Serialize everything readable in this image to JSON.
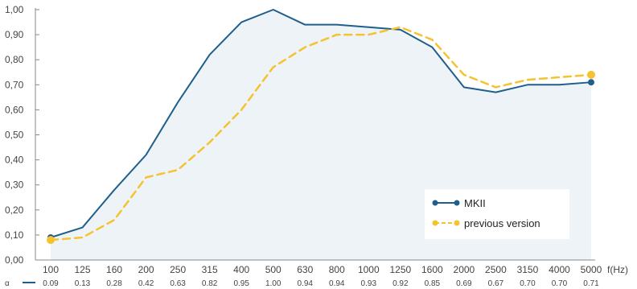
{
  "colors": {
    "series_mkii": "#1f5f8b",
    "series_previous": "#f5c230",
    "area_fill": "#eef3f7",
    "grid_axis": "#888888",
    "legend_bg": "#ffffff"
  },
  "chart_data": {
    "type": "line",
    "title": "",
    "xlabel": "f(Hz)",
    "ylabel": "",
    "row_label": "α",
    "ylim": [
      0,
      1
    ],
    "y_ticks": [
      "0,00",
      "0,10",
      "0,20",
      "0,30",
      "0,40",
      "0,50",
      "0,60",
      "0,70",
      "0,80",
      "0,90",
      "1,00"
    ],
    "x": [
      "100",
      "125",
      "160",
      "200",
      "250",
      "315",
      "400",
      "500",
      "630",
      "800",
      "1000",
      "1250",
      "1600",
      "2000",
      "2500",
      "3150",
      "4000",
      "5000"
    ],
    "alpha_row": [
      "0.09",
      "0.13",
      "0.28",
      "0.42",
      "0.63",
      "0.82",
      "0.95",
      "1.00",
      "0.94",
      "0.94",
      "0.93",
      "0.92",
      "0.85",
      "0.69",
      "0.67",
      "0.70",
      "0.70",
      "0.71"
    ],
    "legend_position": "bottom-right",
    "grid": false,
    "series": [
      {
        "name": "MKII",
        "style": "solid",
        "values": [
          0.09,
          0.13,
          0.28,
          0.42,
          0.63,
          0.82,
          0.95,
          1.0,
          0.94,
          0.94,
          0.93,
          0.92,
          0.85,
          0.69,
          0.67,
          0.7,
          0.7,
          0.71
        ]
      },
      {
        "name": "previous version",
        "style": "dashed",
        "values": [
          0.08,
          0.09,
          0.16,
          0.33,
          0.36,
          0.47,
          0.6,
          0.77,
          0.85,
          0.9,
          0.9,
          0.93,
          0.88,
          0.74,
          0.69,
          0.72,
          0.73,
          0.74
        ]
      }
    ]
  }
}
